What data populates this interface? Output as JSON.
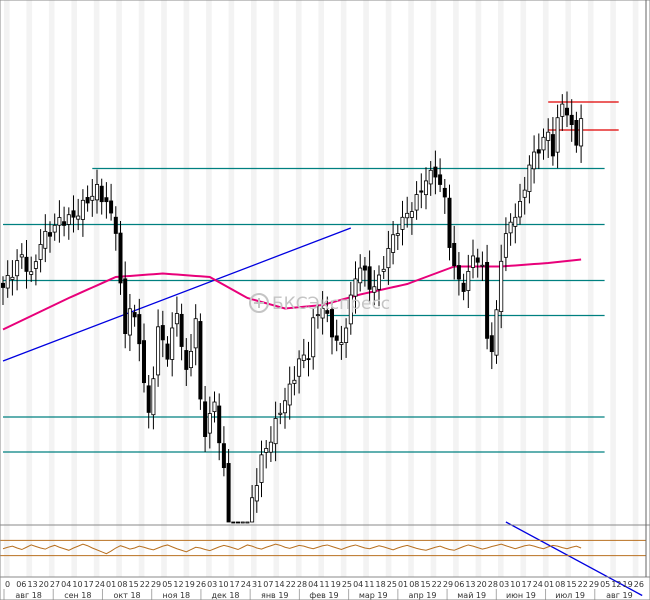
{
  "watermark": "БКСЭкспресс",
  "colors": {
    "candle": "#000000",
    "support": "#008080",
    "resistance": "#e00000",
    "trend": "#0000e0",
    "moving_average": "#e8007a",
    "oscillator": "#b87020",
    "osc_bounds": "#b87020",
    "grid_stripe": "#f3f3f3",
    "axis": "#333333"
  },
  "chart_data": {
    "type": "candlestick",
    "title": "",
    "xlabel": "",
    "ylabel": "",
    "grid": true,
    "x_tick_days": [
      "0",
      "06",
      "13",
      "20",
      "27",
      "04",
      "10",
      "17",
      "24",
      "01",
      "08",
      "15",
      "22",
      "29",
      "05",
      "12",
      "19",
      "26",
      "03",
      "10",
      "17",
      "24",
      "31",
      "07",
      "14",
      "22",
      "28",
      "04",
      "11",
      "19",
      "25",
      "04",
      "11",
      "18",
      "25",
      "01",
      "08",
      "15",
      "22",
      "29",
      "06",
      "13",
      "20",
      "28",
      "03",
      "10",
      "17",
      "24",
      "01",
      "08",
      "15",
      "22",
      "29",
      "05",
      "12",
      "19",
      "26"
    ],
    "month_labels": [
      "авг 18",
      "сен 18",
      "окт 18",
      "ноя 18",
      "дек 18",
      "янв 19",
      "фев 19",
      "мар 19",
      "апр 19",
      "май 19",
      "июн 19",
      "июл 19",
      "авг 19"
    ],
    "y_range": [
      0,
      100
    ],
    "price_path": [
      {
        "i": 0,
        "v": 55
      },
      {
        "i": 4,
        "v": 64
      },
      {
        "i": 6,
        "v": 58
      },
      {
        "i": 8,
        "v": 68
      },
      {
        "i": 12,
        "v": 74
      },
      {
        "i": 15,
        "v": 75
      },
      {
        "i": 18,
        "v": 80
      },
      {
        "i": 20,
        "v": 83
      },
      {
        "i": 22,
        "v": 79
      },
      {
        "i": 24,
        "v": 72
      },
      {
        "i": 25,
        "v": 55
      },
      {
        "i": 26,
        "v": 42
      },
      {
        "i": 27,
        "v": 50
      },
      {
        "i": 29,
        "v": 40
      },
      {
        "i": 30,
        "v": 28
      },
      {
        "i": 31,
        "v": 18
      },
      {
        "i": 33,
        "v": 43
      },
      {
        "i": 35,
        "v": 36
      },
      {
        "i": 37,
        "v": 48
      },
      {
        "i": 39,
        "v": 30
      },
      {
        "i": 41,
        "v": 46
      },
      {
        "i": 42,
        "v": 22
      },
      {
        "i": 43,
        "v": 14
      },
      {
        "i": 45,
        "v": 22
      },
      {
        "i": 47,
        "v": 2
      },
      {
        "i": 48,
        "v": -14
      },
      {
        "i": 49,
        "v": -27
      },
      {
        "i": 50,
        "v": -40
      },
      {
        "i": 51,
        "v": -30
      },
      {
        "i": 52,
        "v": -18
      },
      {
        "i": 53,
        "v": -6
      },
      {
        "i": 55,
        "v": 6
      },
      {
        "i": 57,
        "v": 12
      },
      {
        "i": 59,
        "v": 20
      },
      {
        "i": 61,
        "v": 26
      },
      {
        "i": 63,
        "v": 34
      },
      {
        "i": 65,
        "v": 36
      },
      {
        "i": 66,
        "v": 45
      },
      {
        "i": 68,
        "v": 50
      },
      {
        "i": 70,
        "v": 42
      },
      {
        "i": 72,
        "v": 38
      },
      {
        "i": 74,
        "v": 52
      },
      {
        "i": 76,
        "v": 62
      },
      {
        "i": 78,
        "v": 55
      },
      {
        "i": 80,
        "v": 57
      },
      {
        "i": 82,
        "v": 66
      },
      {
        "i": 84,
        "v": 72
      },
      {
        "i": 86,
        "v": 76
      },
      {
        "i": 88,
        "v": 80
      },
      {
        "i": 90,
        "v": 86
      },
      {
        "i": 92,
        "v": 88
      },
      {
        "i": 94,
        "v": 80
      },
      {
        "i": 95,
        "v": 68
      },
      {
        "i": 96,
        "v": 60
      },
      {
        "i": 98,
        "v": 55
      },
      {
        "i": 99,
        "v": 58
      },
      {
        "i": 100,
        "v": 65
      },
      {
        "i": 102,
        "v": 60
      },
      {
        "i": 103,
        "v": 42
      },
      {
        "i": 104,
        "v": 36
      },
      {
        "i": 105,
        "v": 48
      },
      {
        "i": 106,
        "v": 64
      },
      {
        "i": 108,
        "v": 74
      },
      {
        "i": 110,
        "v": 78
      },
      {
        "i": 112,
        "v": 90
      },
      {
        "i": 114,
        "v": 95
      },
      {
        "i": 116,
        "v": 99
      },
      {
        "i": 117,
        "v": 94
      },
      {
        "i": 118,
        "v": 102
      },
      {
        "i": 119,
        "v": 108
      },
      {
        "i": 120,
        "v": 105
      },
      {
        "i": 121,
        "v": 100
      },
      {
        "i": 122,
        "v": 97
      },
      {
        "i": 123,
        "v": 103
      }
    ],
    "candle_count": 124,
    "moving_average": [
      {
        "i": 0,
        "v": 43
      },
      {
        "i": 14,
        "v": 52
      },
      {
        "i": 24,
        "v": 58
      },
      {
        "i": 34,
        "v": 59
      },
      {
        "i": 44,
        "v": 58
      },
      {
        "i": 52,
        "v": 52
      },
      {
        "i": 60,
        "v": 49
      },
      {
        "i": 68,
        "v": 50
      },
      {
        "i": 76,
        "v": 53
      },
      {
        "i": 86,
        "v": 56
      },
      {
        "i": 96,
        "v": 61
      },
      {
        "i": 106,
        "v": 61
      },
      {
        "i": 116,
        "v": 62
      },
      {
        "i": 123,
        "v": 63
      }
    ],
    "horizontal_levels": [
      {
        "kind": "support",
        "value": 89,
        "from": 19,
        "to": 128
      },
      {
        "kind": "support",
        "value": 73,
        "from": 0,
        "to": 128
      },
      {
        "kind": "support",
        "value": 57,
        "from": 0,
        "to": 128
      },
      {
        "kind": "support",
        "value": 47,
        "from": 69,
        "to": 128
      },
      {
        "kind": "support",
        "value": 18,
        "from": 0,
        "to": 128
      },
      {
        "kind": "support",
        "value": 8,
        "from": 0,
        "to": 128
      },
      {
        "kind": "resistance",
        "value": 108,
        "from": 116,
        "to": 131
      },
      {
        "kind": "resistance",
        "value": 100,
        "from": 116,
        "to": 131
      }
    ],
    "trendlines": [
      {
        "from_i": 0,
        "from_v": 34,
        "to_i": 74,
        "to_v": 72
      },
      {
        "from_i": 107,
        "from_v": -40,
        "to_i": 136,
        "to_v": -33
      }
    ],
    "oscillator": {
      "bounds": [
        70,
        30
      ],
      "values": [
        48,
        52,
        55,
        50,
        46,
        52,
        58,
        54,
        50,
        47,
        53,
        57,
        52,
        48,
        44,
        50,
        55,
        60,
        56,
        50,
        45,
        40,
        35,
        42,
        50,
        56,
        52,
        47,
        50,
        55,
        52,
        48,
        45,
        50,
        55,
        58,
        53,
        48,
        44,
        40,
        46,
        52,
        50,
        46,
        43,
        48,
        53,
        57,
        54,
        50,
        46,
        52,
        58,
        55,
        50,
        47,
        52,
        56,
        60,
        57,
        52,
        49,
        53,
        57,
        55,
        51,
        48,
        52,
        56,
        58,
        54,
        50,
        46,
        51,
        55,
        58,
        54,
        50,
        48,
        52,
        56,
        53,
        49,
        45,
        50,
        54,
        57,
        53,
        49,
        46,
        44,
        48,
        52,
        55,
        50,
        46,
        44,
        49,
        54,
        58,
        55,
        51,
        47,
        50,
        54,
        57,
        60,
        56,
        52,
        48,
        52,
        56,
        58,
        55,
        51,
        48,
        53,
        57,
        55,
        51,
        48,
        52,
        55,
        50
      ]
    }
  }
}
